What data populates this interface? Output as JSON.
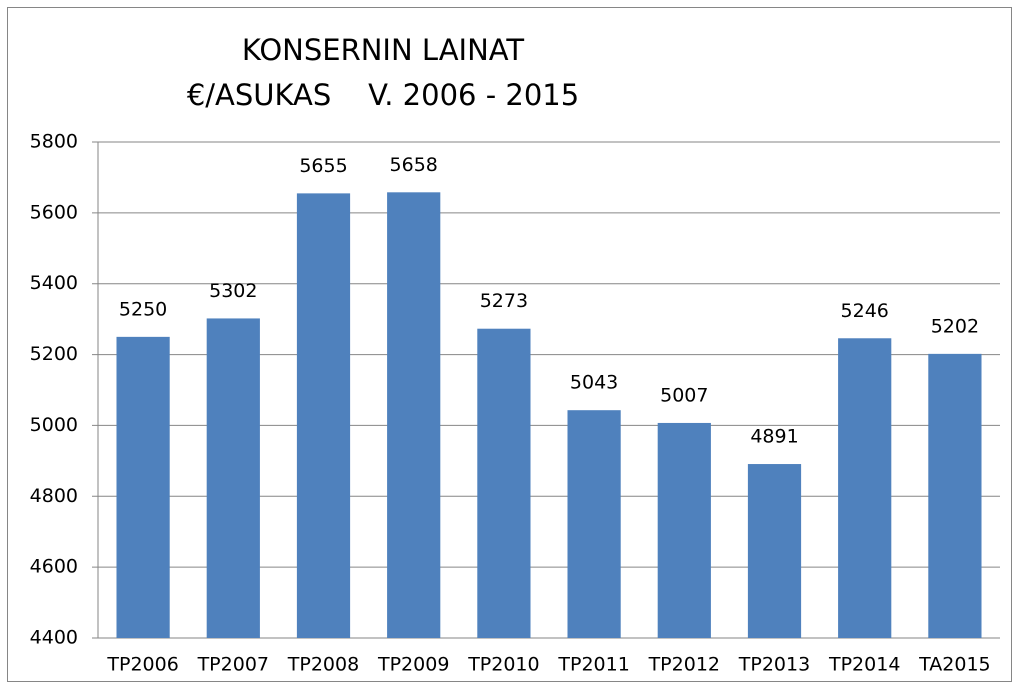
{
  "chart_data": {
    "type": "bar",
    "title": [
      "KONSERNIN LAINAT",
      "€/ASUKAS    V. 2006 - 2015"
    ],
    "categories": [
      "TP2006",
      "TP2007",
      "TP2008",
      "TP2009",
      "TP2010",
      "TP2011",
      "TP2012",
      "TP2013",
      "TP2014",
      "TA2015"
    ],
    "values": [
      5250,
      5302,
      5655,
      5658,
      5273,
      5043,
      5007,
      4891,
      5246,
      5202
    ],
    "color": "#4f81bd",
    "ylim": [
      4400,
      5800
    ],
    "yticks": [
      4400,
      4600,
      4800,
      5000,
      5200,
      5400,
      5600,
      5800
    ],
    "grid": true,
    "data_labels": true
  }
}
